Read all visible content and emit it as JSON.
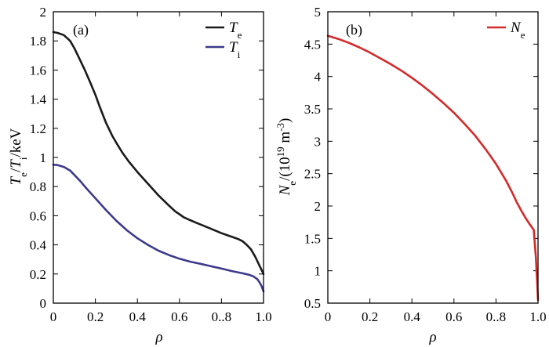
{
  "chart_data": [
    {
      "type": "line",
      "panel_label": "(a)",
      "xlabel": "ρ",
      "ylabel": {
        "p1": "T",
        "s1": "e",
        "p2": "/",
        "p3": "T",
        "s2": "i",
        "p4": "/keV"
      },
      "xlim": [
        0,
        1.0
      ],
      "ylim": [
        0,
        2
      ],
      "x_ticks": [
        0,
        0.2,
        0.4,
        0.6,
        0.8,
        1.0
      ],
      "x_tick_labels": [
        "0",
        "0.2",
        "0.4",
        "0.6",
        "0..8",
        "1.0"
      ],
      "y_ticks": [
        0,
        0.2,
        0.4,
        0.6,
        0.8,
        1.0,
        1.2,
        1.4,
        1.6,
        1.8,
        2
      ],
      "y_tick_labels": [
        "0",
        "0.2",
        "0.4",
        "0.6",
        "0.8",
        "1",
        "1.2",
        "1.4",
        "1.6",
        "1.8",
        "2"
      ],
      "legend_position": "top-right",
      "grid": false,
      "series": [
        {
          "name": "T",
          "name_sub": "e",
          "color": "#1a1a1a",
          "x": [
            0,
            0.02,
            0.05,
            0.08,
            0.1,
            0.12,
            0.15,
            0.18,
            0.2,
            0.22,
            0.25,
            0.28,
            0.3,
            0.33,
            0.36,
            0.4,
            0.45,
            0.5,
            0.55,
            0.58,
            0.6,
            0.62,
            0.65,
            0.7,
            0.75,
            0.8,
            0.85,
            0.88,
            0.9,
            0.92,
            0.94,
            0.96,
            0.98,
            1.0
          ],
          "y": [
            1.86,
            1.855,
            1.84,
            1.8,
            1.75,
            1.69,
            1.6,
            1.5,
            1.43,
            1.35,
            1.24,
            1.15,
            1.1,
            1.03,
            0.97,
            0.9,
            0.82,
            0.74,
            0.67,
            0.63,
            0.61,
            0.59,
            0.57,
            0.54,
            0.51,
            0.48,
            0.455,
            0.44,
            0.425,
            0.4,
            0.37,
            0.32,
            0.26,
            0.2
          ]
        },
        {
          "name": "T",
          "name_sub": "i",
          "color": "#3d3a8c",
          "x": [
            0,
            0.02,
            0.05,
            0.08,
            0.1,
            0.13,
            0.15,
            0.2,
            0.25,
            0.3,
            0.35,
            0.4,
            0.45,
            0.5,
            0.55,
            0.6,
            0.65,
            0.7,
            0.75,
            0.8,
            0.85,
            0.9,
            0.93,
            0.95,
            0.97,
            0.98,
            0.99,
            1.0
          ],
          "y": [
            0.95,
            0.948,
            0.935,
            0.91,
            0.88,
            0.835,
            0.8,
            0.72,
            0.64,
            0.565,
            0.5,
            0.445,
            0.4,
            0.36,
            0.33,
            0.305,
            0.285,
            0.27,
            0.253,
            0.237,
            0.22,
            0.205,
            0.195,
            0.185,
            0.165,
            0.145,
            0.12,
            0.08
          ]
        }
      ]
    },
    {
      "type": "line",
      "panel_label": "(b)",
      "xlabel": "ρ",
      "ylabel": {
        "p1": "N",
        "s1": "e",
        "p2": "/(10",
        "sup": "19",
        "p3": " m",
        "sup2": "-3",
        "p4": ")"
      },
      "xlim": [
        0,
        1.0
      ],
      "ylim": [
        0.5,
        5
      ],
      "x_ticks": [
        0,
        0.2,
        0.4,
        0.6,
        0.8,
        1.0
      ],
      "x_tick_labels": [
        "0",
        "0.2",
        "0.4",
        "0.6",
        "0..8",
        "1.0"
      ],
      "y_ticks": [
        0.5,
        1,
        1.5,
        2,
        2.5,
        3,
        3.5,
        4,
        4.5,
        5
      ],
      "y_tick_labels": [
        "0.5",
        "1",
        "1.5",
        "2",
        "2.5",
        "3",
        "3.5",
        "4",
        "4.5",
        "5"
      ],
      "legend_position": "top-right",
      "grid": false,
      "series": [
        {
          "name": "N",
          "name_sub": "e",
          "color": "#d42a2a",
          "x": [
            0,
            0.05,
            0.1,
            0.15,
            0.2,
            0.25,
            0.3,
            0.35,
            0.4,
            0.45,
            0.5,
            0.55,
            0.6,
            0.65,
            0.7,
            0.75,
            0.8,
            0.85,
            0.88,
            0.9,
            0.92,
            0.94,
            0.96,
            0.98,
            0.99,
            1.0
          ],
          "y": [
            4.63,
            4.58,
            4.52,
            4.45,
            4.37,
            4.28,
            4.19,
            4.09,
            3.98,
            3.86,
            3.73,
            3.59,
            3.44,
            3.27,
            3.09,
            2.88,
            2.65,
            2.38,
            2.19,
            2.05,
            1.93,
            1.82,
            1.72,
            1.63,
            1.2,
            0.55
          ]
        }
      ]
    }
  ]
}
